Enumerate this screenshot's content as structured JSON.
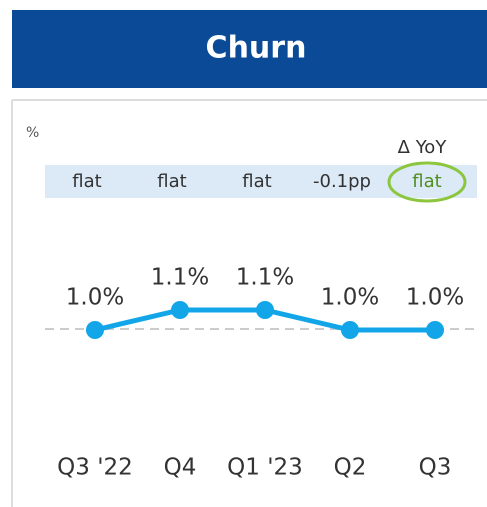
{
  "chart_data": {
    "type": "line",
    "title": "Churn",
    "unit_label": "%",
    "categories": [
      "Q3 '22",
      "Q4",
      "Q1 '23",
      "Q2",
      "Q3"
    ],
    "series": [
      {
        "name": "Churn",
        "color": "#12a6e8",
        "values": [
          1.0,
          1.1,
          1.1,
          1.0,
          1.0
        ],
        "value_labels": [
          "1.0%",
          "1.1%",
          "1.1%",
          "1.0%",
          "1.0%"
        ]
      }
    ],
    "delta_title": "Δ YoY",
    "delta_labels": [
      "flat",
      "flat",
      "flat",
      "-0.1pp",
      "flat"
    ],
    "highlight_color": "#8cc63f"
  }
}
